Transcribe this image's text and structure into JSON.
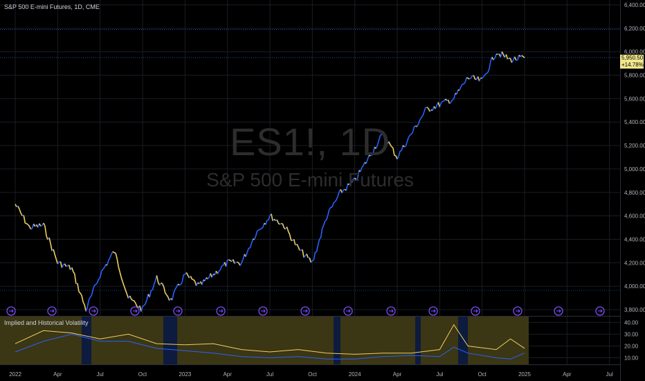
{
  "header": {
    "title": "S&P 500 E-mini Futures, 1D, CME"
  },
  "watermark": {
    "ticker": "ES1!, 1D",
    "name": "S&P 500 E-mini Futures"
  },
  "price_axis": {
    "labels": [
      "6,400.00",
      "6,200.00",
      "6,000.00",
      "5,800.00",
      "5,600.00",
      "5,400.00",
      "5,200.00",
      "5,000.00",
      "4,800.00",
      "4,600.00",
      "4,400.00",
      "4,200.00",
      "4,000.00",
      "3,800.00"
    ]
  },
  "last_price": {
    "value": "5,950.50",
    "change": "+14.78%"
  },
  "indicator": {
    "title": "Implied and Historical Volatility",
    "axis_labels": [
      "40.00",
      "30.00",
      "20.00",
      "10.00"
    ]
  },
  "time_axis": {
    "labels": [
      "2022",
      "Apr",
      "Jul",
      "Oct",
      "2023",
      "Apr",
      "Jul",
      "Oct",
      "2024",
      "Apr",
      "Jul",
      "Oct",
      "2025",
      "Apr",
      "Jul"
    ]
  },
  "colors": {
    "up": "#2962ff",
    "down": "#f0d060",
    "implied": "#f0d060",
    "historical": "#2962ff",
    "badge": "#f0e68c",
    "event_marker": "#7c4dff"
  },
  "chart_data": [
    {
      "type": "line",
      "title": "S&P 500 E-mini Futures, 1D, CME",
      "x_range": [
        "2022-01",
        "2025-01"
      ],
      "ylim": [
        3800,
        6400
      ],
      "series": [
        {
          "name": "",
          "x": [
            "2022-01",
            "2022-02",
            "2022-03",
            "2022-04",
            "2022-05",
            "2022-06",
            "2022-07",
            "2022-08",
            "2022-09",
            "2022-10",
            "2022-11",
            "2022-12",
            "2023-01",
            "2023-02",
            "2023-03",
            "2023-04",
            "2023-05",
            "2023-06",
            "2023-07",
            "2023-08",
            "2023-09",
            "2023-10",
            "2023-11",
            "2023-12",
            "2024-01",
            "2024-02",
            "2024-03",
            "2024-04",
            "2024-05",
            "2024-06",
            "2024-07",
            "2024-08",
            "2024-09",
            "2024-10",
            "2024-11",
            "2024-12",
            "2025-01"
          ],
          "values": [
            4700,
            4500,
            4520,
            4200,
            4150,
            3800,
            4100,
            4300,
            3900,
            3800,
            4070,
            3880,
            4100,
            4000,
            4100,
            4200,
            4200,
            4450,
            4600,
            4520,
            4320,
            4200,
            4590,
            4800,
            4900,
            5100,
            5300,
            5100,
            5300,
            5500,
            5550,
            5600,
            5780,
            5750,
            6000,
            5930,
            5950
          ]
        }
      ],
      "last_value": 5950.5,
      "change_percent": 14.78
    },
    {
      "type": "line",
      "title": "Implied and Historical Volatility",
      "ylim": [
        5,
        42
      ],
      "x_range": [
        "2022-01",
        "2025-01"
      ],
      "series": [
        {
          "name": "",
          "x": [
            "2022-01",
            "2022-03",
            "2022-05",
            "2022-07",
            "2022-09",
            "2022-11",
            "2023-01",
            "2023-03",
            "2023-05",
            "2023-07",
            "2023-09",
            "2023-11",
            "2024-01",
            "2024-03",
            "2024-05",
            "2024-07",
            "2024-08",
            "2024-09",
            "2024-11",
            "2024-12",
            "2025-01"
          ],
          "values": [
            22,
            33,
            31,
            26,
            30,
            22,
            21,
            22,
            17,
            15,
            17,
            14,
            13,
            14,
            14,
            17,
            38,
            20,
            17,
            26,
            18
          ]
        },
        {
          "name": "",
          "x": [
            "2022-01",
            "2022-03",
            "2022-05",
            "2022-07",
            "2022-09",
            "2022-11",
            "2023-01",
            "2023-03",
            "2023-05",
            "2023-07",
            "2023-09",
            "2023-11",
            "2024-01",
            "2024-03",
            "2024-05",
            "2024-07",
            "2024-08",
            "2024-09",
            "2024-11",
            "2024-12",
            "2025-01"
          ],
          "values": [
            15,
            24,
            30,
            24,
            24,
            18,
            16,
            14,
            11,
            10,
            11,
            9,
            9,
            11,
            12,
            11,
            19,
            14,
            10,
            9,
            14
          ]
        }
      ]
    }
  ]
}
